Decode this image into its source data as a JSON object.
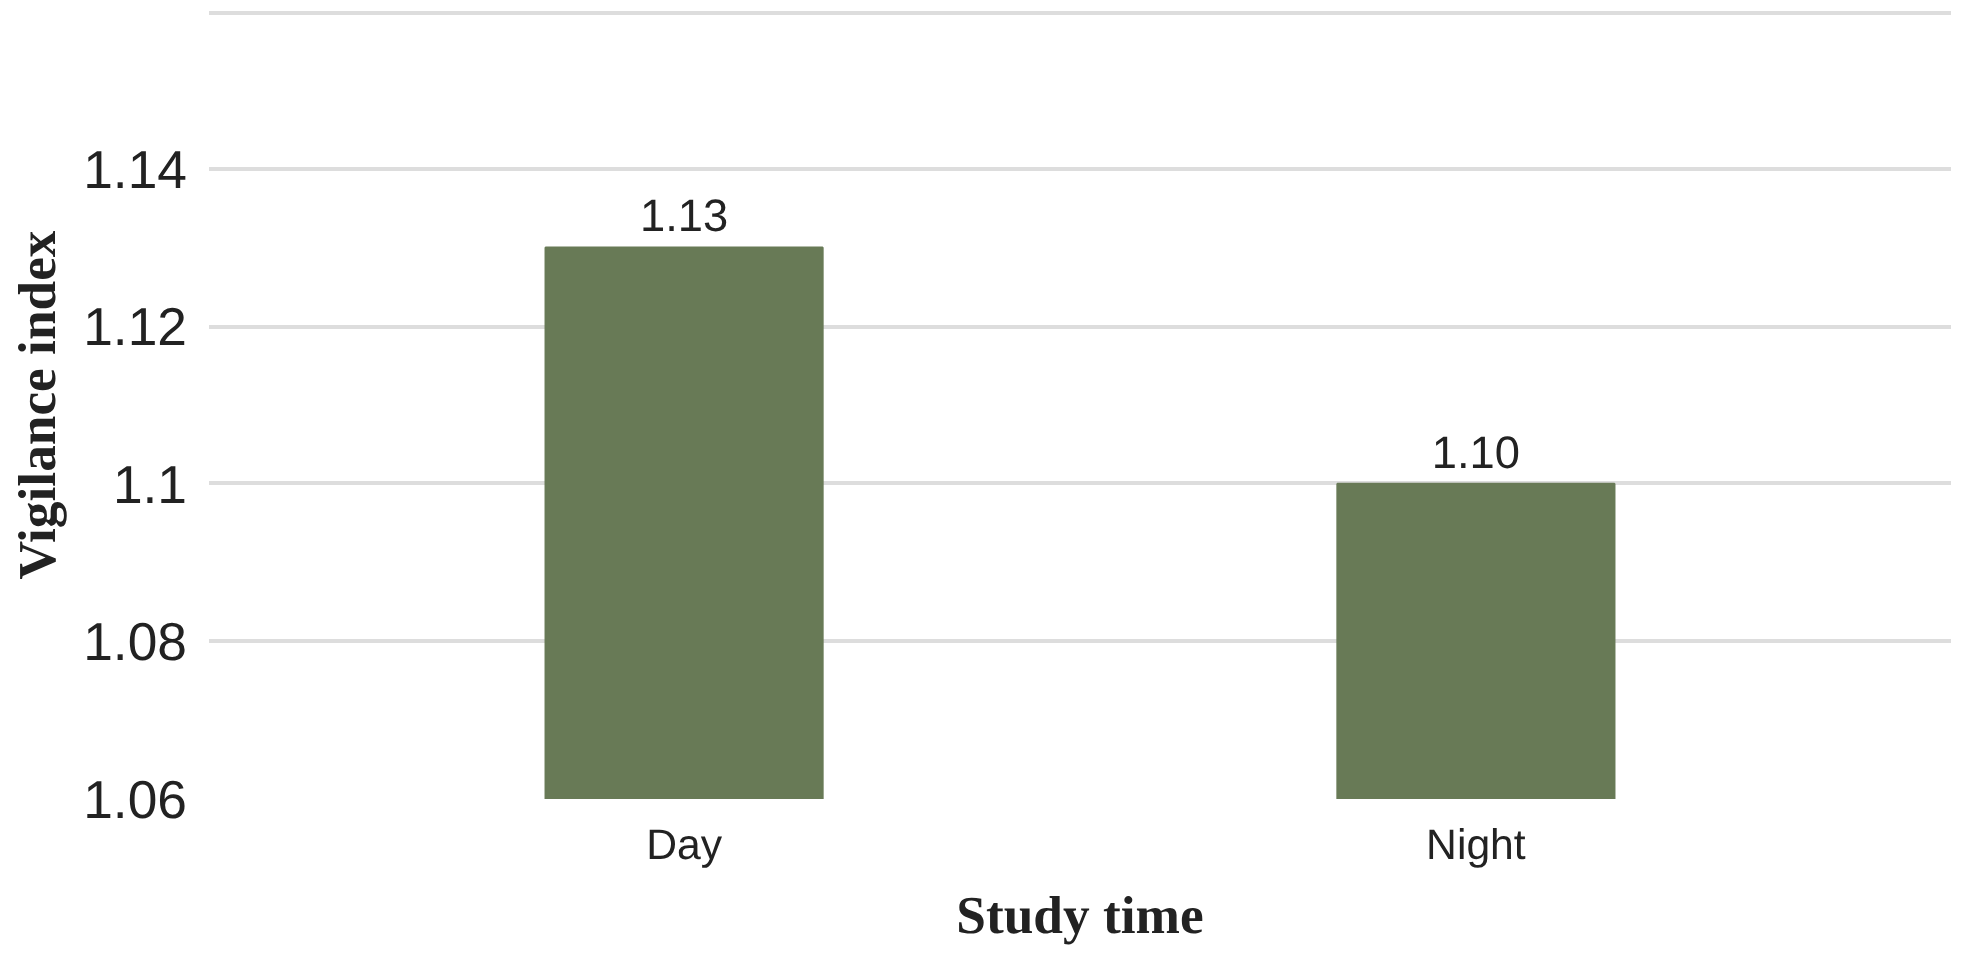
{
  "chart_data": {
    "type": "bar",
    "xlabel": "Study time",
    "ylabel": "Vigilance index",
    "categories": [
      "Day",
      "Night"
    ],
    "values": [
      1.13,
      1.1
    ],
    "value_labels": [
      "1.13",
      "1.10"
    ],
    "color": "#687a56",
    "ylim": [
      1.06,
      1.16
    ],
    "yticks": [
      1.06,
      1.08,
      1.1,
      1.12,
      1.14,
      {
        "value": 1.16,
        "label": null
      }
    ],
    "grid": "y"
  }
}
